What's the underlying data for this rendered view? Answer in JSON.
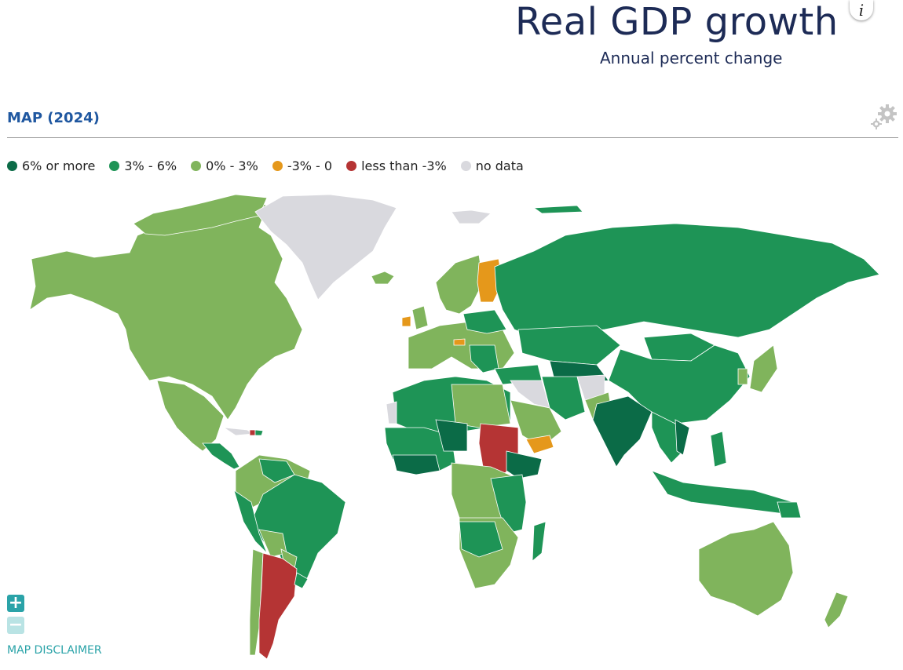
{
  "header": {
    "title": "Real GDP growth",
    "subtitle": "Annual percent change",
    "info_label": "i"
  },
  "section": {
    "title": "MAP (2024)",
    "settings_icon": "gear-icon"
  },
  "legend": [
    {
      "label": "6% or more",
      "color": "#0b6b47"
    },
    {
      "label": "3% - 6%",
      "color": "#1e9456"
    },
    {
      "label": "0% - 3%",
      "color": "#80b45c"
    },
    {
      "label": "-3% - 0",
      "color": "#e5981b"
    },
    {
      "label": "less than -3%",
      "color": "#b53434"
    },
    {
      "label": "no data",
      "color": "#d9d9de"
    }
  ],
  "controls": {
    "zoom_in": "+",
    "zoom_out": "−",
    "disclaimer": "MAP DISCLAIMER"
  }
}
